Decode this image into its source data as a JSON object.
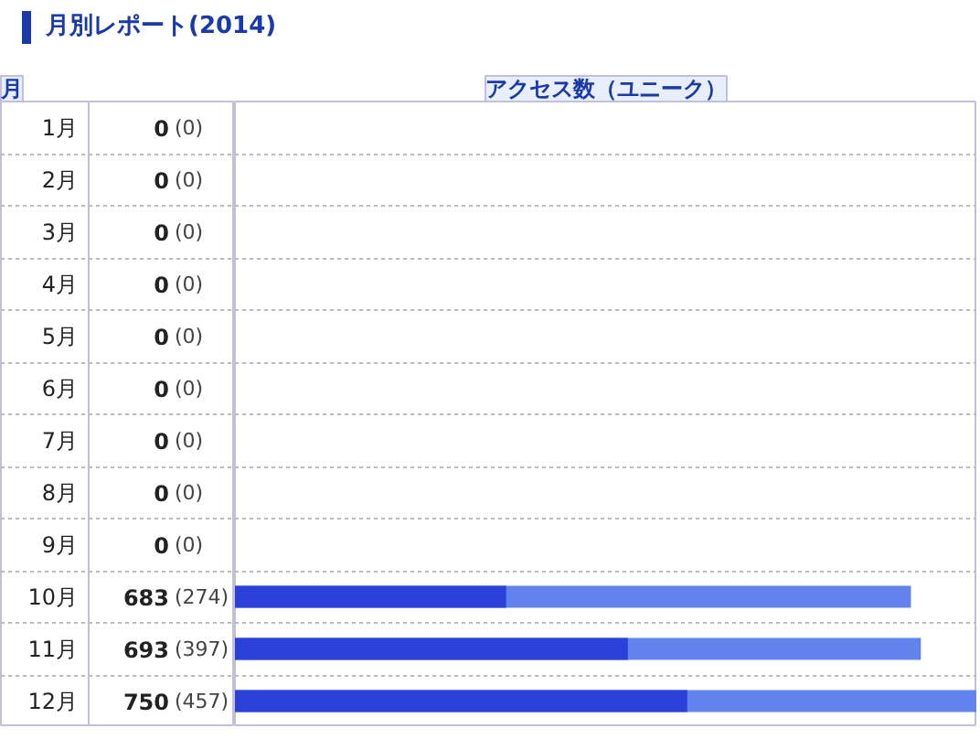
{
  "chart_data": {
    "type": "bar",
    "orientation": "horizontal",
    "title": "月別レポート(2014)",
    "ylabel": "月",
    "xlabel": "アクセス数（ユニーク）",
    "categories": [
      "1月",
      "2月",
      "3月",
      "4月",
      "5月",
      "6月",
      "7月",
      "8月",
      "9月",
      "10月",
      "11月",
      "12月"
    ],
    "xlim": [
      0,
      750
    ],
    "tick_labels": false,
    "grid": "y",
    "series": [
      {
        "color": "#6383ec",
        "values": [
          0,
          0,
          0,
          0,
          0,
          0,
          0,
          0,
          0,
          683,
          693,
          750
        ],
        "value_labels": [
          "0",
          "0",
          "0",
          "0",
          "0",
          "0",
          "0",
          "0",
          "0",
          "683",
          "693",
          "750"
        ]
      },
      {
        "color": "#2a40d8",
        "values": [
          0,
          0,
          0,
          0,
          0,
          0,
          0,
          0,
          0,
          274,
          397,
          457
        ],
        "value_labels": [
          "(0)",
          "(0)",
          "(0)",
          "(0)",
          "(0)",
          "(0)",
          "(0)",
          "(0)",
          "(0)",
          "(274)",
          "(397)",
          "(457)"
        ]
      }
    ]
  }
}
